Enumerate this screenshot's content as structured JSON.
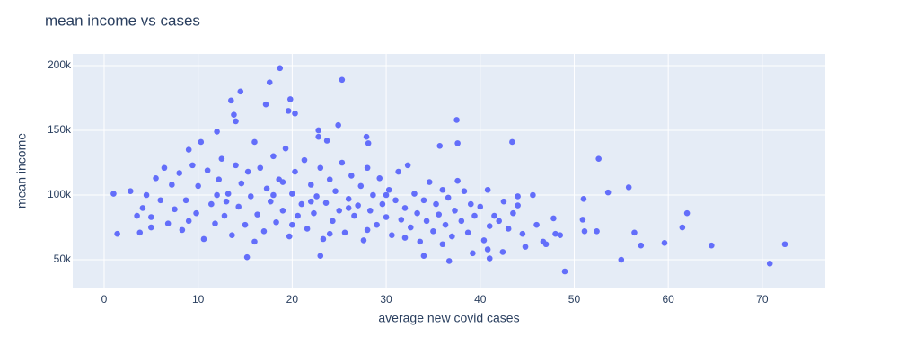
{
  "chart_data": {
    "type": "scatter",
    "title": "mean income vs cases",
    "xlabel": "average new covid cases",
    "ylabel": "mean income",
    "color": "#636efa",
    "grid": true,
    "xlim": [
      -3.34,
      76.7
    ],
    "xticks": [
      0,
      10,
      20,
      30,
      40,
      50,
      60,
      70
    ],
    "ylim": [
      28500,
      209000
    ],
    "yticks": [
      {
        "value": 50000,
        "label": "50k"
      },
      {
        "value": 100000,
        "label": "100k"
      },
      {
        "value": 150000,
        "label": "150k"
      },
      {
        "value": 200000,
        "label": "200k"
      }
    ],
    "x": [
      1,
      1.4,
      18.7,
      17.6,
      25.3,
      14.5,
      19.8,
      13.5,
      17.2,
      19.6,
      13.8,
      20.3,
      14,
      37.5,
      24.9,
      12,
      22.8,
      43.4,
      52.6,
      53.6,
      55.8,
      51,
      56.4,
      57.1,
      59.6,
      61.5,
      62,
      64.6,
      55,
      70.8,
      72.4,
      49,
      48.5,
      47.8,
      50.9,
      51.1,
      52.4,
      48,
      47,
      46,
      45.6,
      44,
      44.5,
      46.7,
      44.8,
      15.2,
      23,
      36.7,
      41,
      40.8,
      42.4,
      34,
      39.2,
      35.7,
      37.6,
      40.8,
      27.9,
      28.1,
      22.8,
      23.7,
      2.8,
      3.5,
      3.8,
      4.1,
      4.5,
      5,
      5.5,
      6,
      6.4,
      6.8,
      7.2,
      7.5,
      8,
      8.3,
      8.7,
      9,
      9.4,
      9.8,
      10,
      10.3,
      10.6,
      11,
      11.4,
      11.8,
      12.2,
      12.5,
      12.8,
      13.2,
      13.6,
      14,
      14.3,
      14.6,
      15,
      15.3,
      15.6,
      16,
      16.3,
      16.6,
      17,
      17.3,
      17.7,
      18,
      18.3,
      18.6,
      19,
      19.3,
      19.7,
      20,
      20.3,
      20.6,
      21,
      21.3,
      21.6,
      22,
      22.3,
      22.6,
      23,
      23.3,
      23.6,
      24,
      24.3,
      24.6,
      25,
      25.3,
      25.6,
      26,
      26.3,
      26.6,
      27,
      27.3,
      27.6,
      28,
      28.3,
      28.6,
      29,
      29.3,
      29.6,
      30,
      30.3,
      30.6,
      31,
      31.3,
      31.6,
      32,
      32.3,
      32.6,
      33,
      33.3,
      33.6,
      34,
      34.3,
      34.6,
      35,
      35.3,
      35.6,
      36,
      36.3,
      36.6,
      37,
      37.3,
      37.6,
      38,
      38.3,
      38.7,
      39,
      39.4,
      40,
      40.4,
      41,
      41.5,
      42,
      42.5,
      43,
      43.5,
      44,
      12,
      18,
      22,
      26,
      30,
      5,
      9,
      13,
      20,
      24,
      28,
      32,
      36,
      16,
      19
    ],
    "values": [
      101000,
      70000,
      198000,
      187000,
      189000,
      180000,
      174000,
      173000,
      170000,
      165000,
      162000,
      163000,
      157000,
      158000,
      154000,
      149000,
      150000,
      141000,
      128000,
      102000,
      106000,
      97000,
      71000,
      61000,
      63000,
      75000,
      86000,
      61000,
      50000,
      47000,
      62000,
      41000,
      69000,
      82000,
      81000,
      72000,
      72000,
      70000,
      62000,
      77000,
      100000,
      99000,
      70000,
      64000,
      60000,
      52000,
      53000,
      49000,
      51000,
      58000,
      56000,
      53000,
      55000,
      138000,
      140000,
      104000,
      145000,
      140000,
      145000,
      142000,
      103000,
      84000,
      71000,
      90000,
      100000,
      83000,
      113000,
      96000,
      121000,
      78000,
      108000,
      89000,
      117000,
      73000,
      96000,
      135000,
      123000,
      86000,
      107000,
      141000,
      66000,
      119000,
      93000,
      78000,
      112000,
      128000,
      84000,
      101000,
      69000,
      123000,
      91000,
      109000,
      77000,
      118000,
      99000,
      141000,
      85000,
      121000,
      72000,
      105000,
      95000,
      130000,
      79000,
      112000,
      88000,
      136000,
      68000,
      101000,
      118000,
      84000,
      93000,
      127000,
      74000,
      108000,
      86000,
      99000,
      121000,
      66000,
      94000,
      112000,
      80000,
      103000,
      88000,
      125000,
      71000,
      97000,
      115000,
      84000,
      92000,
      107000,
      65000,
      121000,
      88000,
      100000,
      77000,
      113000,
      93000,
      83000,
      104000,
      69000,
      96000,
      118000,
      81000,
      90000,
      123000,
      75000,
      101000,
      86000,
      64000,
      96000,
      80000,
      110000,
      72000,
      93000,
      85000,
      104000,
      77000,
      98000,
      68000,
      88000,
      111000,
      80000,
      103000,
      71000,
      93000,
      84000,
      91000,
      65000,
      76000,
      84000,
      80000,
      95000,
      74000,
      86000,
      92000,
      100000,
      100000,
      95000,
      90000,
      100000,
      75000,
      80000,
      95000,
      77000,
      70000,
      73000,
      67000,
      62000,
      64000,
      110000
    ]
  }
}
